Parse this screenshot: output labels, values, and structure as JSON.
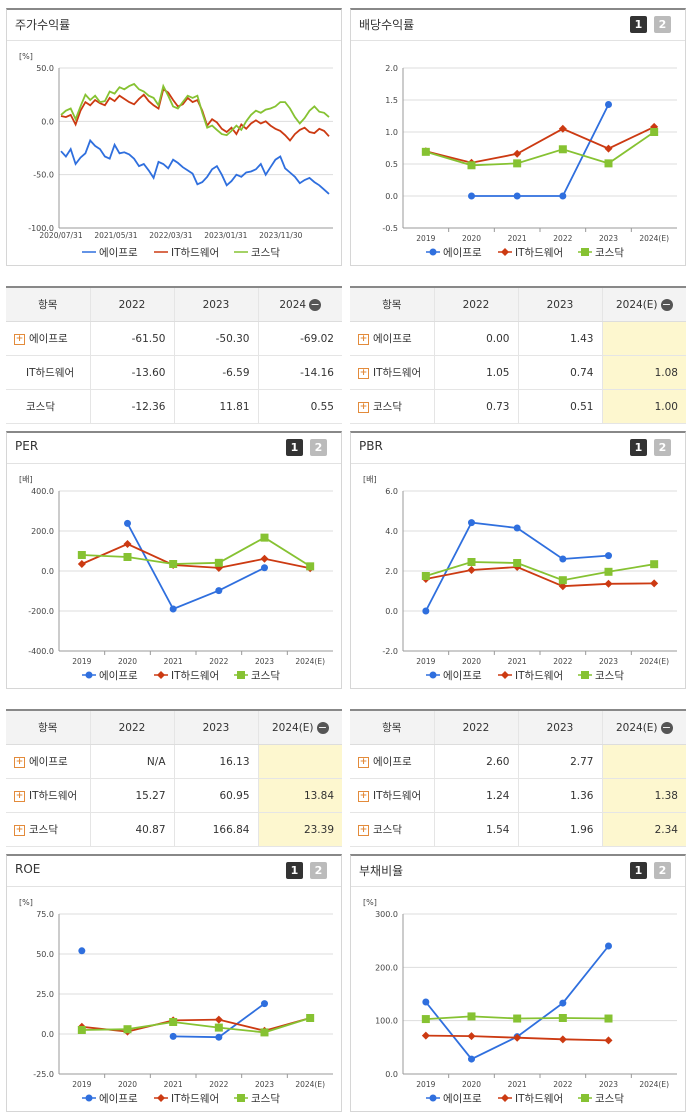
{
  "legend": {
    "s1": "에이프로",
    "s2": "IT하드웨어",
    "s3": "코스닥"
  },
  "colors": {
    "s1": "#2f6fde",
    "s2": "#cc3a12",
    "s3": "#86c232",
    "grid": "#dddddd",
    "axis": "#555555",
    "accent": "#fdf7cf"
  },
  "pager": {
    "p1": "1",
    "p2": "2"
  },
  "tables": {
    "stock": {
      "h0": "항목",
      "h1": "2022",
      "h2": "2023",
      "h3": "2024",
      "r1": {
        "n": "에이프로",
        "a": "-61.50",
        "b": "-50.30",
        "c": "-69.02"
      },
      "r2": {
        "n": "IT하드웨어",
        "a": "-13.60",
        "b": "-6.59",
        "c": "-14.16"
      },
      "r3": {
        "n": "코스닥",
        "a": "-12.36",
        "b": "11.81",
        "c": "0.55"
      }
    },
    "div": {
      "h0": "항목",
      "h1": "2022",
      "h2": "2023",
      "h3": "2024(E)",
      "r1": {
        "n": "에이프로",
        "a": "0.00",
        "b": "1.43",
        "c": ""
      },
      "r2": {
        "n": "IT하드웨어",
        "a": "1.05",
        "b": "0.74",
        "c": "1.08"
      },
      "r3": {
        "n": "코스닥",
        "a": "0.73",
        "b": "0.51",
        "c": "1.00"
      }
    },
    "per": {
      "h0": "항목",
      "h1": "2022",
      "h2": "2023",
      "h3": "2024(E)",
      "r1": {
        "n": "에이프로",
        "a": "N/A",
        "b": "16.13",
        "c": ""
      },
      "r2": {
        "n": "IT하드웨어",
        "a": "15.27",
        "b": "60.95",
        "c": "13.84"
      },
      "r3": {
        "n": "코스닥",
        "a": "40.87",
        "b": "166.84",
        "c": "23.39"
      }
    },
    "pbr": {
      "h0": "항목",
      "h1": "2022",
      "h2": "2023",
      "h3": "2024(E)",
      "r1": {
        "n": "에이프로",
        "a": "2.60",
        "b": "2.77",
        "c": ""
      },
      "r2": {
        "n": "IT하드웨어",
        "a": "1.24",
        "b": "1.36",
        "c": "1.38"
      },
      "r3": {
        "n": "코스닥",
        "a": "1.54",
        "b": "1.96",
        "c": "2.34"
      }
    }
  },
  "chart_data": [
    {
      "id": "stock",
      "type": "line",
      "title": "주가수익률",
      "unit": "[%]",
      "ylim": [
        -100,
        50
      ],
      "yticks": [
        "50.0",
        "0.0",
        "-50.0",
        "-100.0"
      ],
      "x_labels": [
        "2020/07/31",
        "2021/05/31",
        "2022/03/31",
        "2023/01/31",
        "2023/11/30"
      ],
      "series": [
        {
          "name": "에이프로",
          "values": [
            -28,
            -33,
            -26,
            -40,
            -34,
            -30,
            -18,
            -23,
            -26,
            -33,
            -35,
            -22,
            -30,
            -29,
            -31,
            -35,
            -42,
            -40,
            -46,
            -53,
            -38,
            -40,
            -44,
            -36,
            -39,
            -43,
            -46,
            -49,
            -59,
            -57,
            -52,
            -45,
            -42,
            -50,
            -60,
            -56,
            -50,
            -52,
            -48,
            -47,
            -45,
            -40,
            -50,
            -43,
            -36,
            -33,
            -44,
            -48,
            -52,
            -58,
            -55,
            -53,
            -57,
            -60,
            -64,
            -68
          ]
        },
        {
          "name": "IT하드웨어",
          "values": [
            5,
            4,
            6,
            -3,
            10,
            18,
            15,
            20,
            17,
            15,
            22,
            19,
            24,
            21,
            18,
            16,
            21,
            25,
            19,
            15,
            12,
            30,
            27,
            20,
            14,
            16,
            22,
            18,
            20,
            10,
            -4,
            2,
            -1,
            -7,
            -10,
            -6,
            -12,
            -3,
            -7,
            -2,
            1,
            -2,
            0,
            -4,
            -7,
            -9,
            -13,
            -18,
            -12,
            -8,
            -6,
            -10,
            -11,
            -7,
            -9,
            -14
          ]
        },
        {
          "name": "코스닥",
          "values": [
            6,
            10,
            12,
            2,
            14,
            25,
            20,
            24,
            18,
            19,
            28,
            26,
            32,
            30,
            33,
            35,
            30,
            28,
            24,
            22,
            15,
            33,
            24,
            14,
            12,
            18,
            24,
            22,
            24,
            8,
            -6,
            -4,
            -8,
            -12,
            -13,
            -9,
            -4,
            -8,
            0,
            6,
            10,
            8,
            11,
            12,
            14,
            18,
            18,
            12,
            4,
            -2,
            3,
            10,
            14,
            9,
            8,
            4
          ]
        }
      ]
    },
    {
      "id": "div",
      "type": "line",
      "title": "배당수익률",
      "unit": "",
      "ylim": [
        -0.5,
        2.0
      ],
      "yticks": [
        "2.0",
        "1.5",
        "1.0",
        "0.5",
        "0.0",
        "-0.5"
      ],
      "categories": [
        "2019",
        "2020",
        "2021",
        "2022",
        "2023",
        "2024(E)"
      ],
      "series": [
        {
          "name": "에이프로",
          "values": [
            null,
            0.0,
            0.0,
            0.0,
            1.43,
            null
          ]
        },
        {
          "name": "IT하드웨어",
          "values": [
            0.7,
            0.52,
            0.66,
            1.05,
            0.74,
            1.08
          ]
        },
        {
          "name": "코스닥",
          "values": [
            0.69,
            0.48,
            0.51,
            0.73,
            0.51,
            1.0
          ]
        }
      ]
    },
    {
      "id": "per",
      "type": "line",
      "title": "PER",
      "unit": "[배]",
      "ylim": [
        -400,
        400
      ],
      "yticks": [
        "400.0",
        "200.0",
        "0.0",
        "-200.0",
        "-400.0"
      ],
      "categories": [
        "2019",
        "2020",
        "2021",
        "2022",
        "2023",
        "2024(E)"
      ],
      "series": [
        {
          "name": "에이프로",
          "values": [
            null,
            238,
            -190,
            -98,
            16.13,
            null
          ]
        },
        {
          "name": "IT하드웨어",
          "values": [
            35,
            135,
            30,
            15.27,
            60.95,
            13.84
          ]
        },
        {
          "name": "코스닥",
          "values": [
            80,
            70,
            35,
            40.87,
            166.84,
            23.39
          ]
        }
      ]
    },
    {
      "id": "pbr",
      "type": "line",
      "title": "PBR",
      "unit": "[배]",
      "ylim": [
        -2,
        6
      ],
      "yticks": [
        "6.0",
        "4.0",
        "2.0",
        "0.0",
        "-2.0"
      ],
      "categories": [
        "2019",
        "2020",
        "2021",
        "2022",
        "2023",
        "2024(E)"
      ],
      "series": [
        {
          "name": "에이프로",
          "values": [
            0.0,
            4.42,
            4.15,
            2.6,
            2.77,
            null
          ]
        },
        {
          "name": "IT하드웨어",
          "values": [
            1.6,
            2.05,
            2.2,
            1.24,
            1.36,
            1.38
          ]
        },
        {
          "name": "코스닥",
          "values": [
            1.75,
            2.45,
            2.4,
            1.54,
            1.96,
            2.34
          ]
        }
      ]
    },
    {
      "id": "roe",
      "type": "line",
      "title": "ROE",
      "unit": "[%]",
      "ylim": [
        -25,
        75
      ],
      "yticks": [
        "75.0",
        "50.0",
        "25.0",
        "0.0",
        "-25.0"
      ],
      "categories": [
        "2019",
        "2020",
        "2021",
        "2022",
        "2023",
        "2024(E)"
      ],
      "series": [
        {
          "name": "에이프로",
          "values": [
            52,
            null,
            -1.5,
            -2,
            19,
            null
          ]
        },
        {
          "name": "IT하드웨어",
          "values": [
            4.5,
            1.5,
            8.5,
            9,
            2,
            10
          ]
        },
        {
          "name": "코스닥",
          "values": [
            2.5,
            3,
            7.5,
            4,
            1,
            10
          ]
        }
      ]
    },
    {
      "id": "debt",
      "type": "line",
      "title": "부채비율",
      "unit": "[%]",
      "ylim": [
        0,
        300
      ],
      "yticks": [
        "300.0",
        "200.0",
        "100.0",
        "0.0"
      ],
      "categories": [
        "2019",
        "2020",
        "2021",
        "2022",
        "2023",
        "2024(E)"
      ],
      "series": [
        {
          "name": "에이프로",
          "values": [
            135,
            28,
            70,
            133,
            240,
            null
          ]
        },
        {
          "name": "IT하드웨어",
          "values": [
            72,
            71,
            68,
            65,
            63,
            null
          ]
        },
        {
          "name": "코스닥",
          "values": [
            103,
            108,
            104,
            105,
            104,
            null
          ]
        }
      ]
    }
  ]
}
